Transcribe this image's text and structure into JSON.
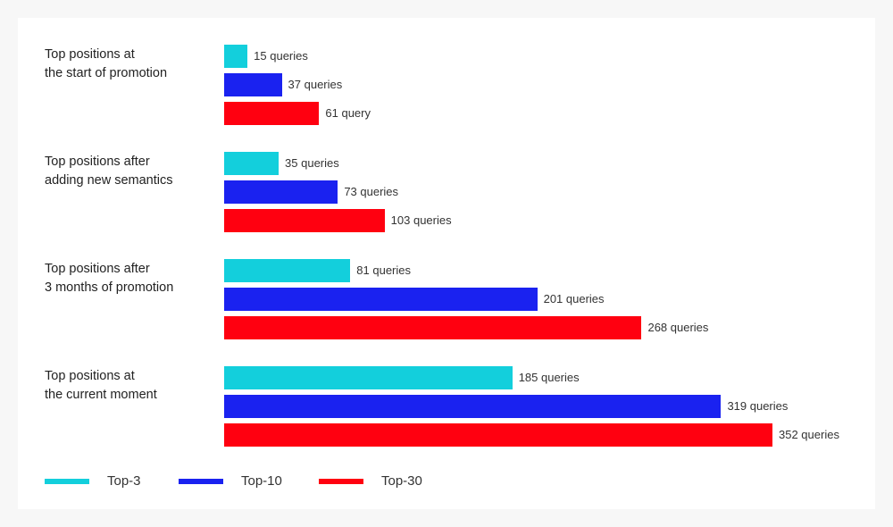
{
  "chart_data": {
    "type": "bar",
    "orientation": "horizontal",
    "categories": [
      "Top positions at\nthe start of promotion",
      "Top positions after\nadding new semantics",
      "Top positions after\n3 months of promotion",
      "Top positions at\nthe current moment"
    ],
    "series": [
      {
        "name": "Top-3",
        "color": "#13cfdc",
        "values": [
          15,
          35,
          81,
          185
        ],
        "labels": [
          "15 queries",
          "35 queries",
          "81 queries",
          "185 queries"
        ]
      },
      {
        "name": "Top-10",
        "color": "#1a22f0",
        "values": [
          37,
          73,
          201,
          319
        ],
        "labels": [
          "37 queries",
          "73 queries",
          "201 queries",
          "319 queries"
        ]
      },
      {
        "name": "Top-30",
        "color": "#ff0010",
        "values": [
          61,
          103,
          268,
          352
        ],
        "labels": [
          "61 query",
          "103 queries",
          "268 queries",
          "352 queries"
        ]
      }
    ],
    "xlim": [
      0,
      352
    ],
    "grid": false,
    "legend": "bottom-left"
  }
}
